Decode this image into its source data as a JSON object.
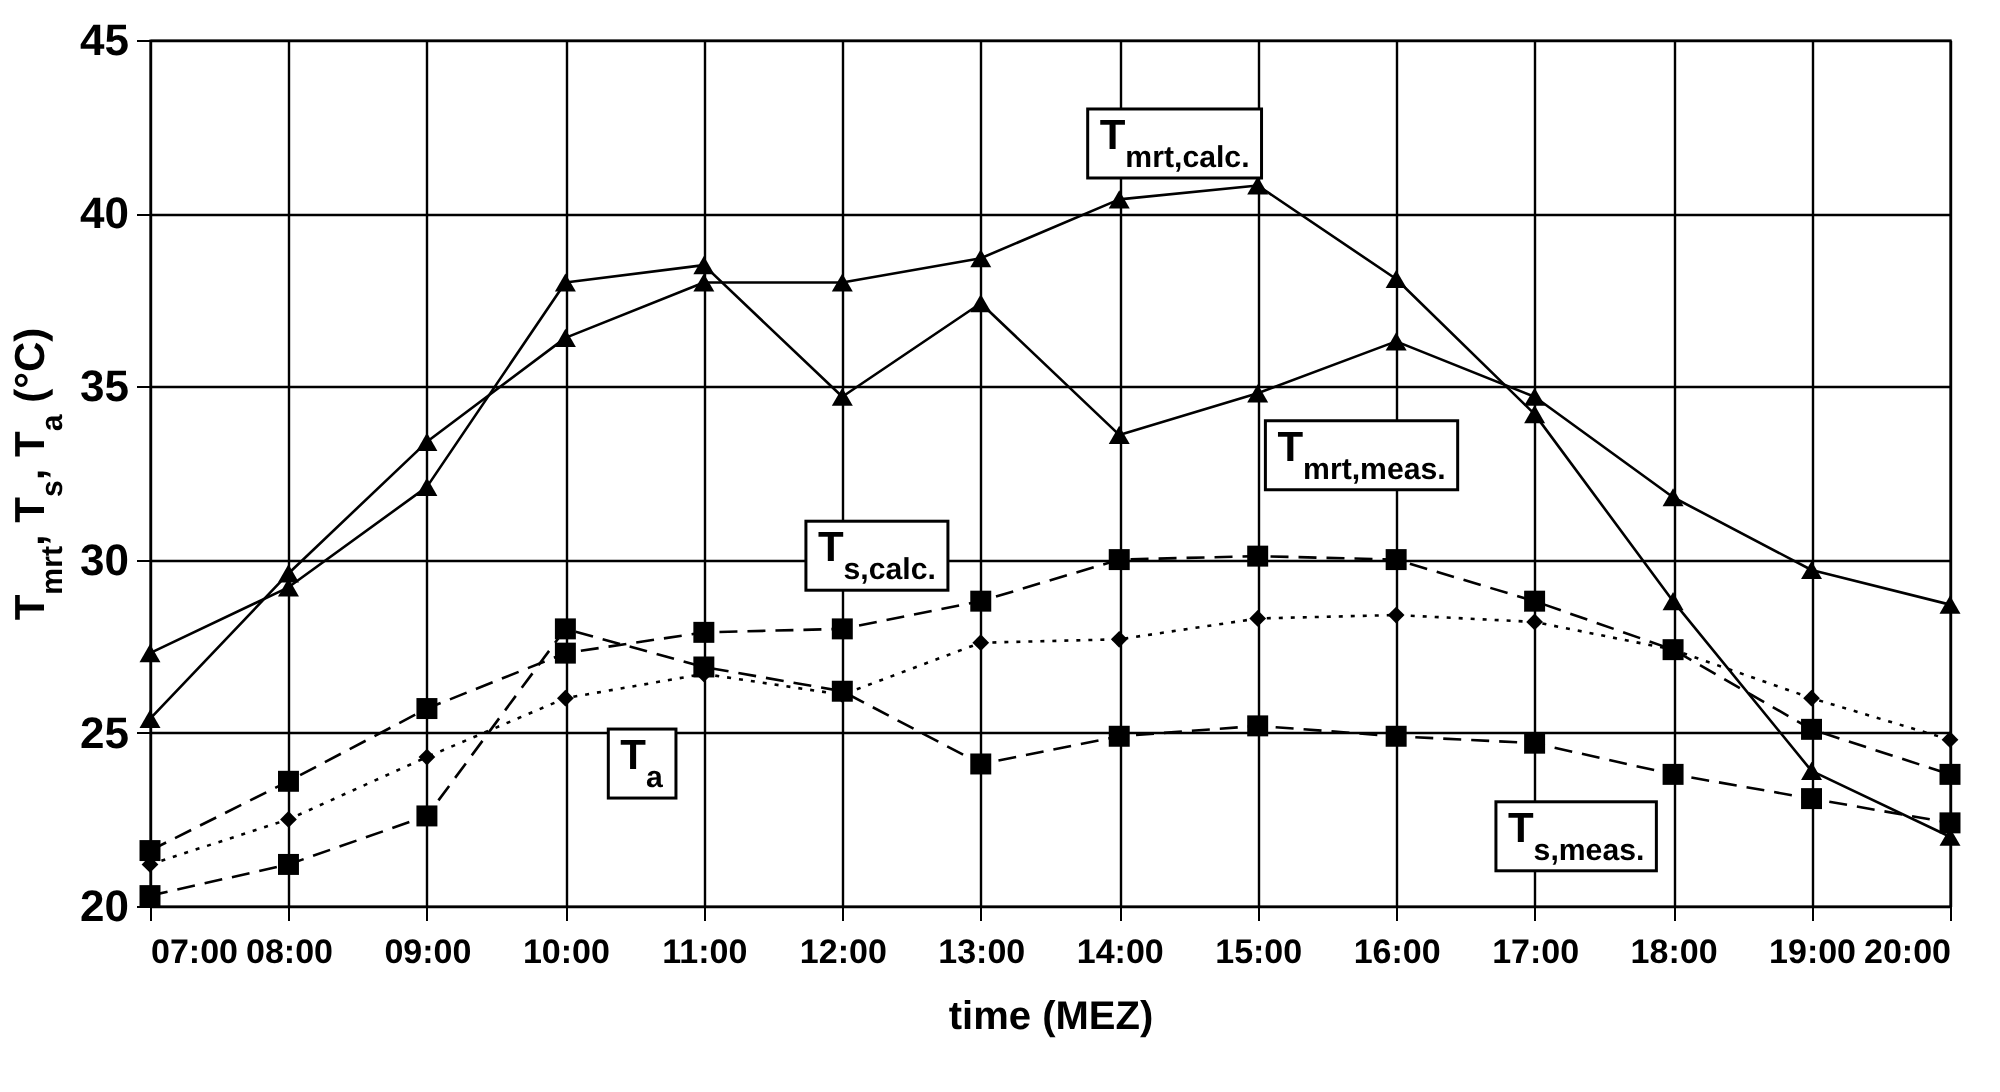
{
  "chart_data": {
    "type": "line",
    "xlabel": "time     (MEZ)",
    "ylabel": "T$_{mrt}$,  T$_{s}$,  T$_{a}$   (°C)",
    "x": [
      7,
      8,
      9,
      10,
      11,
      12,
      13,
      14,
      15,
      16,
      17,
      18,
      19,
      20
    ],
    "xlim": [
      7,
      20
    ],
    "xticks": [
      {
        "value": 7,
        "label": "07:00"
      },
      {
        "value": 8,
        "label": "08:00"
      },
      {
        "value": 9,
        "label": "09:00"
      },
      {
        "value": 10,
        "label": "10:00"
      },
      {
        "value": 11,
        "label": "11:00"
      },
      {
        "value": 12,
        "label": "12:00"
      },
      {
        "value": 13,
        "label": "13:00"
      },
      {
        "value": 14,
        "label": "14:00"
      },
      {
        "value": 15,
        "label": "15:00"
      },
      {
        "value": 16,
        "label": "16:00"
      },
      {
        "value": 17,
        "label": "17:00"
      },
      {
        "value": 18,
        "label": "18:00"
      },
      {
        "value": 19,
        "label": "19:00"
      },
      {
        "value": 20,
        "label": "20:00"
      }
    ],
    "ylim": [
      20,
      45
    ],
    "yticks": [
      20,
      25,
      30,
      35,
      40,
      45
    ],
    "grid": true,
    "series": [
      {
        "name": "T$_{mrt,calc.}$",
        "color": "#000000",
        "marker": "triangle",
        "line_style": "solid",
        "values": [
          25.4,
          29.6,
          33.4,
          36.4,
          38.0,
          38.0,
          38.7,
          40.4,
          40.8,
          38.1,
          34.2,
          28.8,
          23.9,
          22.0
        ]
      },
      {
        "name": "T$_{mrt,meas.}$",
        "color": "#000000",
        "marker": "triangle",
        "line_style": "solid",
        "values": [
          27.3,
          29.2,
          32.1,
          38.0,
          38.5,
          34.7,
          37.4,
          33.6,
          34.8,
          36.3,
          34.7,
          31.8,
          29.7,
          28.7
        ]
      },
      {
        "name": "T$_{s,calc.}$",
        "color": "#000000",
        "marker": "square",
        "line_style": "dashed",
        "values": [
          21.6,
          23.6,
          25.7,
          27.3,
          27.9,
          28.0,
          28.8,
          30.0,
          30.1,
          30.0,
          28.8,
          27.4,
          25.1,
          23.8
        ]
      },
      {
        "name": "T$_{a}$",
        "color": "#000000",
        "marker": "diamond",
        "line_style": "dotted",
        "values": [
          21.2,
          22.5,
          24.3,
          26.0,
          26.7,
          26.1,
          27.6,
          27.7,
          28.3,
          28.4,
          28.2,
          27.4,
          26.0,
          24.8
        ]
      },
      {
        "name": "T$_{s,meas.}$",
        "color": "#000000",
        "marker": "square",
        "line_style": "dashed",
        "values": [
          20.3,
          21.2,
          22.6,
          28.0,
          26.9,
          26.2,
          24.1,
          24.9,
          25.2,
          24.9,
          24.7,
          23.8,
          23.1,
          22.4
        ]
      }
    ]
  }
}
